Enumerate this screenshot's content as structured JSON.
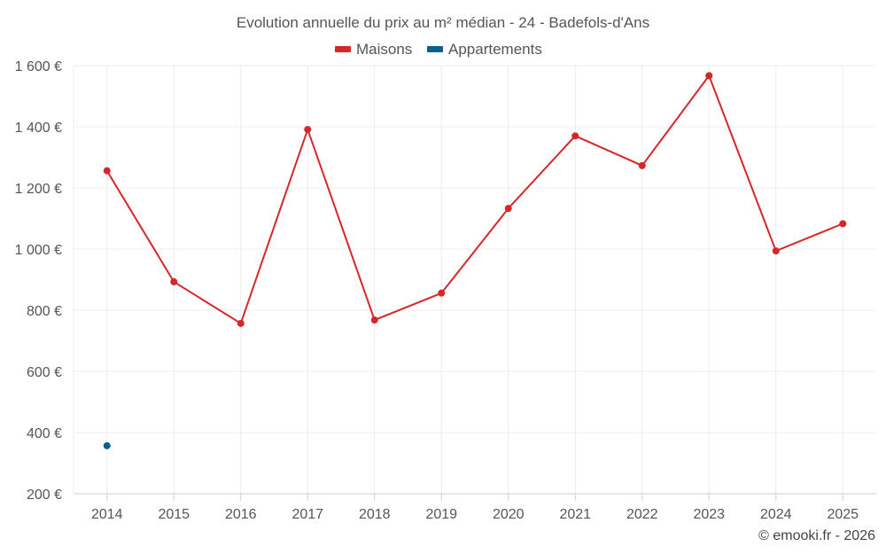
{
  "chart_data": {
    "type": "line",
    "title": "Evolution annuelle du prix au m² médian - 24 - Badefols-d'Ans",
    "categories": [
      "2014",
      "2015",
      "2016",
      "2017",
      "2018",
      "2019",
      "2020",
      "2021",
      "2022",
      "2023",
      "2024",
      "2025"
    ],
    "series": [
      {
        "name": "Maisons",
        "color": "#d62728",
        "values": [
          1256,
          893,
          757,
          1391,
          768,
          856,
          1133,
          1370,
          1273,
          1567,
          994,
          1083
        ]
      },
      {
        "name": "Appartements",
        "color": "#0b5f8f",
        "values": [
          357,
          null,
          null,
          null,
          null,
          null,
          null,
          null,
          null,
          null,
          null,
          null
        ]
      }
    ],
    "ylim": [
      200,
      1600
    ],
    "yticks": [
      200,
      400,
      600,
      800,
      1000,
      1200,
      1400,
      1600
    ],
    "ytick_labels": [
      "200 €",
      "400 €",
      "600 €",
      "800 €",
      "1 000 €",
      "1 200 €",
      "1 400 €",
      "1 600 €"
    ],
    "xlabel": "",
    "ylabel": "",
    "grid": true,
    "legend_position": "top-center"
  },
  "credit": "© emooki.fr - 2026"
}
